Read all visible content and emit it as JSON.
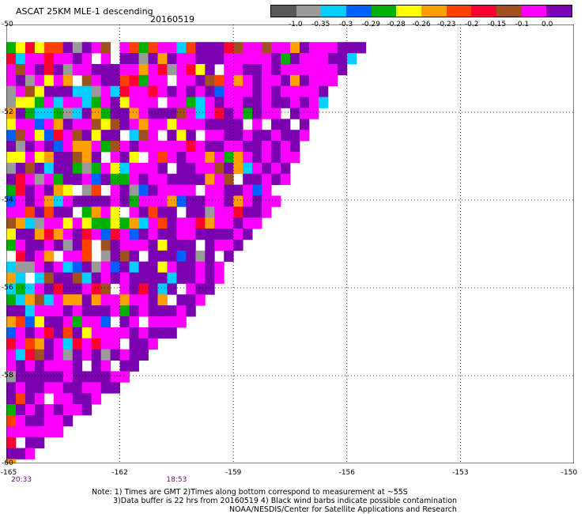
{
  "header": {
    "title": "ASCAT 25KM MLE-1 descending",
    "date": "20160519"
  },
  "colorbar": {
    "colors": [
      "#595959",
      "#9a9a9a",
      "#00cfff",
      "#0060ff",
      "#00b000",
      "#ffff00",
      "#ffa000",
      "#ff4000",
      "#ff0030",
      "#a05020",
      "#ff00ff",
      "#7a00b0"
    ],
    "labels": [
      "-1.0",
      "-0.35",
      "-0.3",
      "-0.29",
      "-0.28",
      "-0.26",
      "-0.23",
      "-0.2",
      "-0.15",
      "-0.1",
      "0.0"
    ]
  },
  "axes": {
    "lat_labels": [
      "-50",
      "-52",
      "-54",
      "-56",
      "-58",
      "-60"
    ],
    "lon_labels": [
      "-165",
      "-162",
      "-159",
      "-156",
      "-153",
      "-150"
    ],
    "time_labels": [
      "20:33",
      "18:53"
    ]
  },
  "notes": {
    "line1": "Note: 1) Times are GMT 2)Times along bottom correspond to measurement at ~55S",
    "line2": "3)Data buffer is 22 hrs from 20160519 4) Black wind barbs indicate possible contamination",
    "line3": "NOAA/NESDIS/Center for Satellite Applications and Research"
  },
  "map_data": {
    "type": "swath-grid",
    "lat_range": [
      -60,
      -50
    ],
    "lon_range": [
      -165,
      -150
    ],
    "swath_edge": [
      [
        -165,
        -60.0
      ],
      [
        -161.9,
        -58.0
      ],
      [
        -159.8,
        -56.0
      ],
      [
        -158.0,
        -54.0
      ],
      [
        -157.0,
        -52.0
      ],
      [
        -155.7,
        -50.4
      ]
    ],
    "cell_size_deg_lon": 0.25,
    "cell_size_deg_lat": 0.25,
    "gridlines": "dotted, every 3 deg lon and 2 deg lat"
  }
}
